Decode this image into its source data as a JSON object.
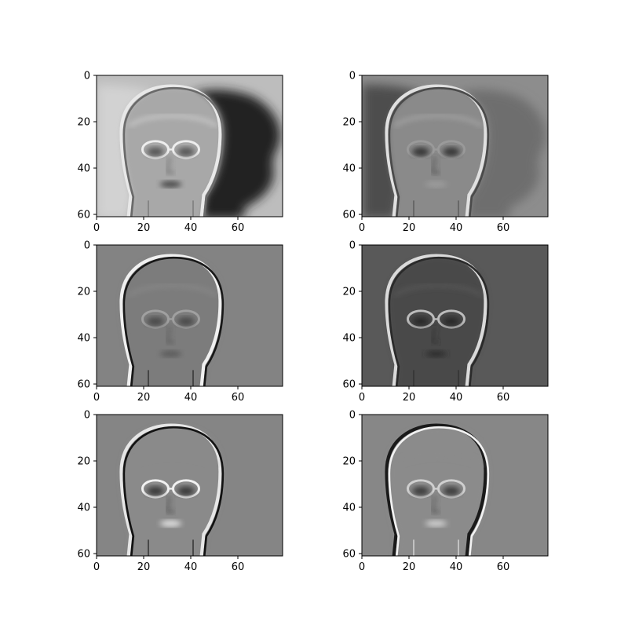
{
  "chart_data": [
    {
      "type": "heatmap",
      "colormap": "gray",
      "xlim": [
        0,
        79
      ],
      "ylim": [
        61,
        0
      ],
      "xticks": [
        0,
        20,
        40,
        60
      ],
      "yticks": [
        0,
        20,
        40,
        60
      ],
      "xtick_labels": [
        "0",
        "20",
        "40",
        "60"
      ],
      "ytick_labels": [
        "0",
        "20",
        "40",
        "60"
      ]
    },
    {
      "type": "heatmap",
      "colormap": "gray",
      "xlim": [
        0,
        79
      ],
      "ylim": [
        61,
        0
      ],
      "xticks": [
        0,
        20,
        40,
        60
      ],
      "yticks": [
        0,
        20,
        40,
        60
      ],
      "xtick_labels": [
        "0",
        "20",
        "40",
        "60"
      ],
      "ytick_labels": [
        "0",
        "20",
        "40",
        "60"
      ]
    },
    {
      "type": "heatmap",
      "colormap": "gray",
      "xlim": [
        0,
        79
      ],
      "ylim": [
        61,
        0
      ],
      "xticks": [
        0,
        20,
        40,
        60
      ],
      "yticks": [
        0,
        20,
        40,
        60
      ],
      "xtick_labels": [
        "0",
        "20",
        "40",
        "60"
      ],
      "ytick_labels": [
        "0",
        "20",
        "40",
        "60"
      ]
    },
    {
      "type": "heatmap",
      "colormap": "gray",
      "xlim": [
        0,
        79
      ],
      "ylim": [
        61,
        0
      ],
      "xticks": [
        0,
        20,
        40,
        60
      ],
      "yticks": [
        0,
        20,
        40,
        60
      ],
      "xtick_labels": [
        "0",
        "20",
        "40",
        "60"
      ],
      "ytick_labels": [
        "0",
        "20",
        "40",
        "60"
      ]
    },
    {
      "type": "heatmap",
      "colormap": "gray",
      "xlim": [
        0,
        79
      ],
      "ylim": [
        61,
        0
      ],
      "xticks": [
        0,
        20,
        40,
        60
      ],
      "yticks": [
        0,
        20,
        40,
        60
      ],
      "xtick_labels": [
        "0",
        "20",
        "40",
        "60"
      ],
      "ytick_labels": [
        "0",
        "20",
        "40",
        "60"
      ]
    },
    {
      "type": "heatmap",
      "colormap": "gray",
      "xlim": [
        0,
        79
      ],
      "ylim": [
        61,
        0
      ],
      "xticks": [
        0,
        20,
        40,
        60
      ],
      "yticks": [
        0,
        20,
        40,
        60
      ],
      "xtick_labels": [
        "0",
        "20",
        "40",
        "60"
      ],
      "ytick_labels": [
        "0",
        "20",
        "40",
        "60"
      ]
    }
  ]
}
